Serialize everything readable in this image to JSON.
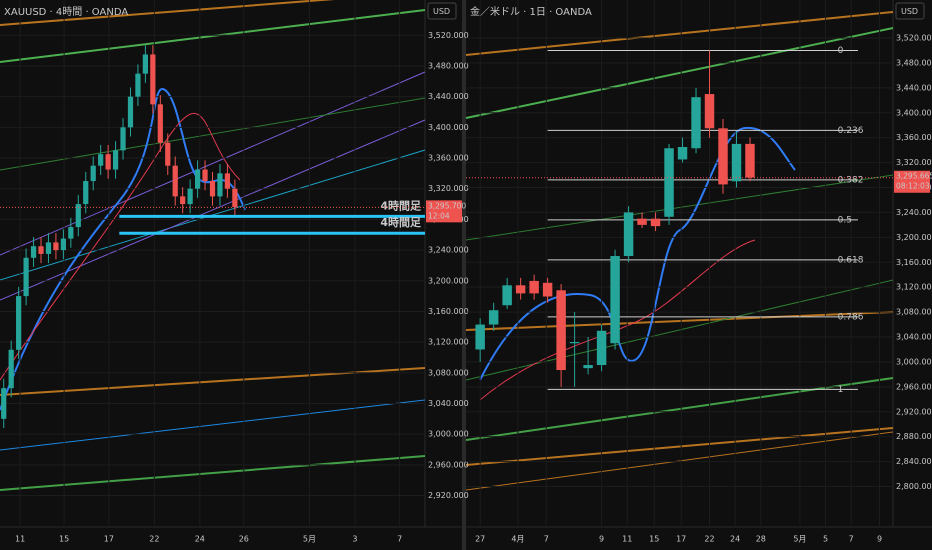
{
  "chart_data": [
    {
      "type": "candlestick",
      "title": "XAUUSD · 4時間 · OANDA",
      "currency": "USD",
      "xlim": [
        0,
        57
      ],
      "ylim": [
        2879,
        3566
      ],
      "xticks": [
        {
          "value": 2.7,
          "label": "11"
        },
        {
          "value": 8.6,
          "label": "15"
        },
        {
          "value": 14.6,
          "label": "17"
        },
        {
          "value": 20.7,
          "label": "22"
        },
        {
          "value": 26.8,
          "label": "24"
        },
        {
          "value": 32.7,
          "label": "26"
        },
        {
          "value": 41.5,
          "label": "5月"
        },
        {
          "value": 47.6,
          "label": "3"
        },
        {
          "value": 53.6,
          "label": "7"
        }
      ],
      "yticks": [
        {
          "value": 3520,
          "label": "3,520.000"
        },
        {
          "value": 3480,
          "label": "3,480.000"
        },
        {
          "value": 3440,
          "label": "3,440.000"
        },
        {
          "value": 3400,
          "label": "3,400.000"
        },
        {
          "value": 3360,
          "label": "3,360.000"
        },
        {
          "value": 3320,
          "label": "3,320.000"
        },
        {
          "value": 3280,
          "label": "3,280.000"
        },
        {
          "value": 3240,
          "label": "3,240.000"
        },
        {
          "value": 3200,
          "label": "3,200.000"
        },
        {
          "value": 3160,
          "label": "3,160.000"
        },
        {
          "value": 3120,
          "label": "3,120.000"
        },
        {
          "value": 3080,
          "label": "3,080.000"
        },
        {
          "value": 3040,
          "label": "3,040.000"
        },
        {
          "value": 3000,
          "label": "3,000.000"
        },
        {
          "value": 2960,
          "label": "2,960.000"
        },
        {
          "value": 2920,
          "label": "2,920.000"
        }
      ],
      "open": [
        3020,
        3060,
        3110,
        3180,
        3230,
        3245,
        3235,
        3250,
        3240,
        3255,
        3270,
        3300,
        3330,
        3350,
        3365,
        3345,
        3370,
        3400,
        3440,
        3470,
        3495,
        3430,
        3380,
        3350,
        3310,
        3300,
        3320,
        3345,
        3330,
        3310,
        3340,
        3320
      ],
      "high": [
        3072,
        3122,
        3192,
        3242,
        3257,
        3257,
        3262,
        3262,
        3267,
        3282,
        3312,
        3342,
        3362,
        3377,
        3377,
        3382,
        3412,
        3452,
        3482,
        3507,
        3507,
        3442,
        3392,
        3362,
        3322,
        3332,
        3357,
        3357,
        3342,
        3352,
        3352,
        3332
      ],
      "low": [
        3008,
        3048,
        3098,
        3168,
        3218,
        3223,
        3223,
        3228,
        3228,
        3243,
        3258,
        3288,
        3318,
        3338,
        3333,
        3333,
        3358,
        3388,
        3428,
        3458,
        3418,
        3368,
        3338,
        3298,
        3288,
        3288,
        3308,
        3318,
        3298,
        3298,
        3308,
        3284
      ],
      "close": [
        3060,
        3110,
        3180,
        3230,
        3245,
        3235,
        3250,
        3240,
        3255,
        3270,
        3300,
        3330,
        3350,
        3365,
        3345,
        3370,
        3400,
        3440,
        3470,
        3495,
        3430,
        3380,
        3350,
        3310,
        3300,
        3320,
        3345,
        3330,
        3310,
        3340,
        3320,
        3296
      ],
      "up_color": "#26a69a",
      "down_color": "#ef5350",
      "last_price": {
        "value": 3295.7,
        "label": "3,295.700"
      },
      "countdown": "12:04",
      "annotations": [
        {
          "text": "4時間足",
          "value": 3284,
          "color": "#29c5f6"
        },
        {
          "text": "4時間足",
          "value": 3262,
          "color": "#29c5f6"
        }
      ]
    },
    {
      "type": "candlestick",
      "title": "金／米ドル · 1日 · OANDA",
      "currency": "USD",
      "xlim": [
        -1.05,
        30.6
      ],
      "ylim": [
        2735,
        3581
      ],
      "xticks": [
        {
          "value": 0,
          "label": "27"
        },
        {
          "value": 2.8,
          "label": "4月"
        },
        {
          "value": 4.9,
          "label": "7"
        },
        {
          "value": 9,
          "label": "9"
        },
        {
          "value": 10.9,
          "label": "11"
        },
        {
          "value": 12.9,
          "label": "15"
        },
        {
          "value": 14.9,
          "label": "17"
        },
        {
          "value": 17,
          "label": "22"
        },
        {
          "value": 18.9,
          "label": "24"
        },
        {
          "value": 20.8,
          "label": "28"
        },
        {
          "value": 23.7,
          "label": "5月"
        },
        {
          "value": 25.6,
          "label": "5"
        },
        {
          "value": 27.5,
          "label": "7"
        },
        {
          "value": 29.6,
          "label": "9"
        }
      ],
      "yticks": [
        {
          "value": 3520,
          "label": "3,520.000"
        },
        {
          "value": 3480,
          "label": "3,480.000"
        },
        {
          "value": 3440,
          "label": "3,440.000"
        },
        {
          "value": 3400,
          "label": "3,400.000"
        },
        {
          "value": 3360,
          "label": "3,360.000"
        },
        {
          "value": 3320,
          "label": "3,320.000"
        },
        {
          "value": 3280,
          "label": "3,280.000"
        },
        {
          "value": 3240,
          "label": "3,240.000"
        },
        {
          "value": 3200,
          "label": "3,200.000"
        },
        {
          "value": 3160,
          "label": "3,160.000"
        },
        {
          "value": 3120,
          "label": "3,120.000"
        },
        {
          "value": 3080,
          "label": "3,080.000"
        },
        {
          "value": 3040,
          "label": "3,040.000"
        },
        {
          "value": 3000,
          "label": "3,000.000"
        },
        {
          "value": 2960,
          "label": "2,960.000"
        },
        {
          "value": 2920,
          "label": "2,920.000"
        },
        {
          "value": 2880,
          "label": "2,880.000"
        },
        {
          "value": 2840,
          "label": "2,840.000"
        },
        {
          "value": 2800,
          "label": "2,800.000"
        }
      ],
      "open": [
        3020,
        3060,
        3091,
        3123,
        3130,
        3127,
        3115,
        3030,
        2990,
        2995,
        3030,
        3170,
        3230,
        3230,
        3233,
        3325,
        3343,
        3430,
        3375,
        3290,
        3350
      ],
      "high": [
        3070,
        3095,
        3135,
        3135,
        3140,
        3135,
        3125,
        3080,
        3040,
        3060,
        3180,
        3250,
        3240,
        3240,
        3350,
        3360,
        3440,
        3500,
        3390,
        3370,
        3360
      ],
      "low": [
        3000,
        3050,
        3085,
        3100,
        3100,
        3095,
        2960,
        2960,
        2980,
        2985,
        3020,
        3160,
        3215,
        3210,
        3220,
        3320,
        3335,
        3360,
        3270,
        3280,
        3290
      ],
      "close": [
        3060,
        3083,
        3123,
        3110,
        3110,
        3105,
        2987,
        3032,
        2995,
        3050,
        3170,
        3240,
        3220,
        3218,
        3343,
        3345,
        3425,
        3375,
        3285,
        3350,
        3296
      ],
      "up_color": "#26a69a",
      "down_color": "#ef5350",
      "last_price": {
        "value": 3295.665,
        "label": "3,295.665"
      },
      "countdown": "08:12:03",
      "fib": {
        "high": 3500,
        "low": 2956,
        "levels": [
          0,
          0.236,
          0.382,
          0.5,
          0.618,
          0.786,
          1
        ]
      }
    }
  ]
}
